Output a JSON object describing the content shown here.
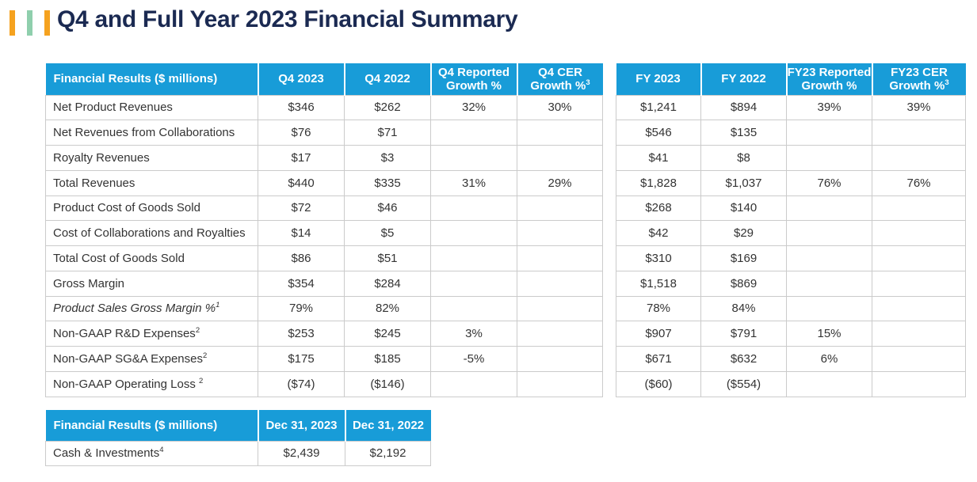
{
  "page": {
    "title": "Q4 and Full Year 2023 Financial Summary"
  },
  "colors": {
    "header_bg": "#189CD8",
    "title_text": "#1B2A52",
    "accent_orange": "#F5A21F",
    "accent_green": "#8FCFAD",
    "cell_border": "#CBCBCB",
    "body_text": "#333333"
  },
  "q4_table": {
    "header": {
      "label": "Financial Results ($ millions)",
      "q4_2023": "Q4 2023",
      "q4_2022": "Q4 2022",
      "reported_growth": "Q4 Reported\nGrowth %",
      "cer_growth": "Q4 CER\nGrowth %",
      "cer_growth_sup": "3"
    },
    "rows": [
      {
        "label": "Net Product Revenues",
        "values": [
          "$346",
          "$262",
          "32%",
          "30%"
        ]
      },
      {
        "label": "Net Revenues from Collaborations",
        "values": [
          "$76",
          "$71",
          "",
          ""
        ]
      },
      {
        "label": "Royalty Revenues",
        "values": [
          "$17",
          "$3",
          "",
          ""
        ]
      },
      {
        "label": "Total Revenues",
        "values": [
          "$440",
          "$335",
          "31%",
          "29%"
        ]
      },
      {
        "label": "Product Cost of Goods Sold",
        "values": [
          "$72",
          "$46",
          "",
          ""
        ]
      },
      {
        "label": "Cost of Collaborations and Royalties",
        "values": [
          "$14",
          "$5",
          "",
          ""
        ]
      },
      {
        "label": "Total Cost of Goods Sold",
        "values": [
          "$86",
          "$51",
          "",
          ""
        ]
      },
      {
        "label": "Gross Margin",
        "values": [
          "$354",
          "$284",
          "",
          ""
        ]
      },
      {
        "label": "Product Sales Gross Margin %",
        "label_sup": "1",
        "italic": true,
        "values": [
          "79%",
          "82%",
          "",
          ""
        ]
      },
      {
        "label": "Non-GAAP R&D Expenses",
        "label_sup": "2",
        "values": [
          "$253",
          "$245",
          "3%",
          ""
        ]
      },
      {
        "label": "Non-GAAP SG&A Expenses",
        "label_sup": "2",
        "values": [
          "$175",
          "$185",
          "-5%",
          ""
        ]
      },
      {
        "label": "Non-GAAP Operating Loss ",
        "label_sup": "2",
        "values": [
          "($74)",
          "($146)",
          "",
          ""
        ]
      }
    ]
  },
  "fy_table": {
    "header": {
      "fy_2023": "FY 2023",
      "fy_2022": "FY 2022",
      "reported_growth": "FY23 Reported\nGrowth %",
      "cer_growth": "FY23 CER\nGrowth %",
      "cer_growth_sup": "3"
    },
    "rows": [
      {
        "values": [
          "$1,241",
          "$894",
          "39%",
          "39%"
        ]
      },
      {
        "values": [
          "$546",
          "$135",
          "",
          ""
        ]
      },
      {
        "values": [
          "$41",
          "$8",
          "",
          ""
        ]
      },
      {
        "values": [
          "$1,828",
          "$1,037",
          "76%",
          "76%"
        ]
      },
      {
        "values": [
          "$268",
          "$140",
          "",
          ""
        ]
      },
      {
        "values": [
          "$42",
          "$29",
          "",
          ""
        ]
      },
      {
        "values": [
          "$310",
          "$169",
          "",
          ""
        ]
      },
      {
        "values": [
          "$1,518",
          "$869",
          "",
          ""
        ]
      },
      {
        "values": [
          "78%",
          "84%",
          "",
          ""
        ]
      },
      {
        "values": [
          "$907",
          "$791",
          "15%",
          ""
        ]
      },
      {
        "values": [
          "$671",
          "$632",
          "6%",
          ""
        ]
      },
      {
        "values": [
          "($60)",
          "($554)",
          "",
          ""
        ]
      }
    ]
  },
  "cash_table": {
    "header": {
      "label": "Financial Results ($ millions)",
      "dec_2023": "Dec 31, 2023",
      "dec_2022": "Dec 31, 2022"
    },
    "rows": [
      {
        "label": "Cash & Investments",
        "label_sup": "4",
        "values": [
          "$2,439",
          "$2,192"
        ]
      }
    ]
  }
}
